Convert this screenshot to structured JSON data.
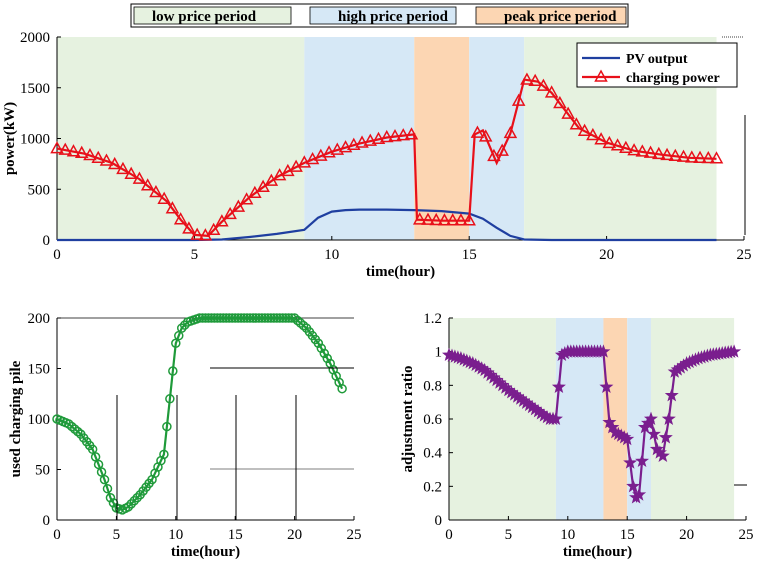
{
  "colors": {
    "low": "#e6f2e0",
    "high": "#d6e8f6",
    "peak": "#fcd6b3",
    "pv": "#1f3fa0",
    "charging": "#e8101a",
    "piles": "#1f9a3a",
    "ratio": "#7a1e8e"
  },
  "period_legend": {
    "low": "low price period",
    "high": "high price period",
    "peak": "peak price period"
  },
  "chart_data": [
    {
      "type": "line",
      "xlabel": "time(hour)",
      "ylabel": "power(kW)",
      "xlim": [
        0,
        25
      ],
      "ylim": [
        0,
        2000
      ],
      "xticks": [
        "0",
        "5",
        "10",
        "15",
        "20",
        "25"
      ],
      "yticks": [
        "0",
        "500",
        "1000",
        "1500",
        "2000"
      ],
      "periods": [
        {
          "kind": "low",
          "from": 0,
          "to": 9
        },
        {
          "kind": "high",
          "from": 9,
          "to": 13
        },
        {
          "kind": "peak",
          "from": 13,
          "to": 15
        },
        {
          "kind": "high",
          "from": 15,
          "to": 17
        },
        {
          "kind": "low",
          "from": 17,
          "to": 24
        }
      ],
      "legend_position": "top-right",
      "series": [
        {
          "name": "PV output",
          "marker": "none",
          "x": [
            0,
            5,
            6,
            7,
            8,
            9,
            9.5,
            10,
            10.5,
            11,
            12,
            13,
            14,
            15,
            15.5,
            16,
            16.5,
            17,
            18,
            24
          ],
          "y": [
            0,
            0,
            5,
            30,
            60,
            100,
            220,
            280,
            295,
            300,
            300,
            295,
            285,
            260,
            210,
            120,
            40,
            5,
            0,
            0
          ]
        },
        {
          "name": "charging power",
          "marker": "triangle",
          "x": [
            0,
            1,
            2,
            3,
            4,
            4.5,
            5,
            5.5,
            6,
            7,
            8,
            9,
            10,
            11,
            12,
            13,
            13.1,
            14,
            15,
            15.2,
            15.5,
            16,
            16.5,
            17,
            17.5,
            18,
            19,
            20,
            21,
            22,
            23,
            24
          ],
          "y": [
            900,
            850,
            760,
            600,
            380,
            200,
            50,
            40,
            180,
            420,
            620,
            760,
            870,
            950,
            1010,
            1040,
            200,
            190,
            190,
            1040,
            1080,
            760,
            1050,
            1580,
            1560,
            1450,
            1100,
            960,
            880,
            840,
            810,
            800
          ]
        }
      ]
    },
    {
      "type": "line",
      "xlabel": "time(hour)",
      "ylabel": "used charging pile",
      "xlim": [
        0,
        25
      ],
      "ylim": [
        0,
        200
      ],
      "xticks": [
        "0",
        "5",
        "10",
        "15",
        "20",
        "25"
      ],
      "yticks": [
        "0",
        "50",
        "100",
        "150",
        "200"
      ],
      "series": [
        {
          "marker": "circle",
          "x": [
            0,
            1,
            2,
            3,
            4,
            4.5,
            5,
            5.5,
            6,
            7,
            8,
            9,
            9.5,
            10,
            10.5,
            11,
            12,
            13,
            14,
            15,
            16,
            17,
            18,
            19,
            20,
            21,
            22,
            23,
            24
          ],
          "y": [
            100,
            95,
            85,
            70,
            40,
            22,
            12,
            10,
            13,
            25,
            40,
            65,
            120,
            175,
            190,
            196,
            200,
            200,
            200,
            200,
            200,
            200,
            200,
            200,
            200,
            190,
            175,
            155,
            130
          ]
        }
      ]
    },
    {
      "type": "line",
      "xlabel": "time(hour)",
      "ylabel": "adjustment ratio",
      "xlim": [
        0,
        25
      ],
      "ylim": [
        0,
        1.2
      ],
      "xticks": [
        "0",
        "5",
        "10",
        "15",
        "20",
        "25"
      ],
      "yticks": [
        "0",
        "0.2",
        "0.4",
        "0.6",
        "0.8",
        "1",
        "1.2"
      ],
      "periods": [
        {
          "kind": "low",
          "from": 0,
          "to": 9
        },
        {
          "kind": "high",
          "from": 9,
          "to": 13
        },
        {
          "kind": "peak",
          "from": 13,
          "to": 15
        },
        {
          "kind": "high",
          "from": 15,
          "to": 17
        },
        {
          "kind": "low",
          "from": 17,
          "to": 24
        }
      ],
      "series": [
        {
          "marker": "star",
          "x": [
            0,
            1,
            2,
            3,
            4,
            5,
            6,
            7,
            8,
            8.5,
            9,
            9.5,
            10,
            11,
            12,
            13,
            13.5,
            14,
            14.5,
            15,
            15.5,
            15.8,
            16,
            16.5,
            17,
            17.5,
            18,
            18.5,
            19,
            20,
            21,
            22,
            23,
            24
          ],
          "y": [
            0.98,
            0.96,
            0.93,
            0.89,
            0.83,
            0.77,
            0.72,
            0.67,
            0.62,
            0.6,
            0.6,
            0.98,
            1,
            1,
            1,
            1,
            0.58,
            0.52,
            0.5,
            0.48,
            0.2,
            0.12,
            0.15,
            0.55,
            0.6,
            0.42,
            0.38,
            0.6,
            0.88,
            0.93,
            0.96,
            0.98,
            0.99,
            1
          ]
        }
      ]
    }
  ]
}
